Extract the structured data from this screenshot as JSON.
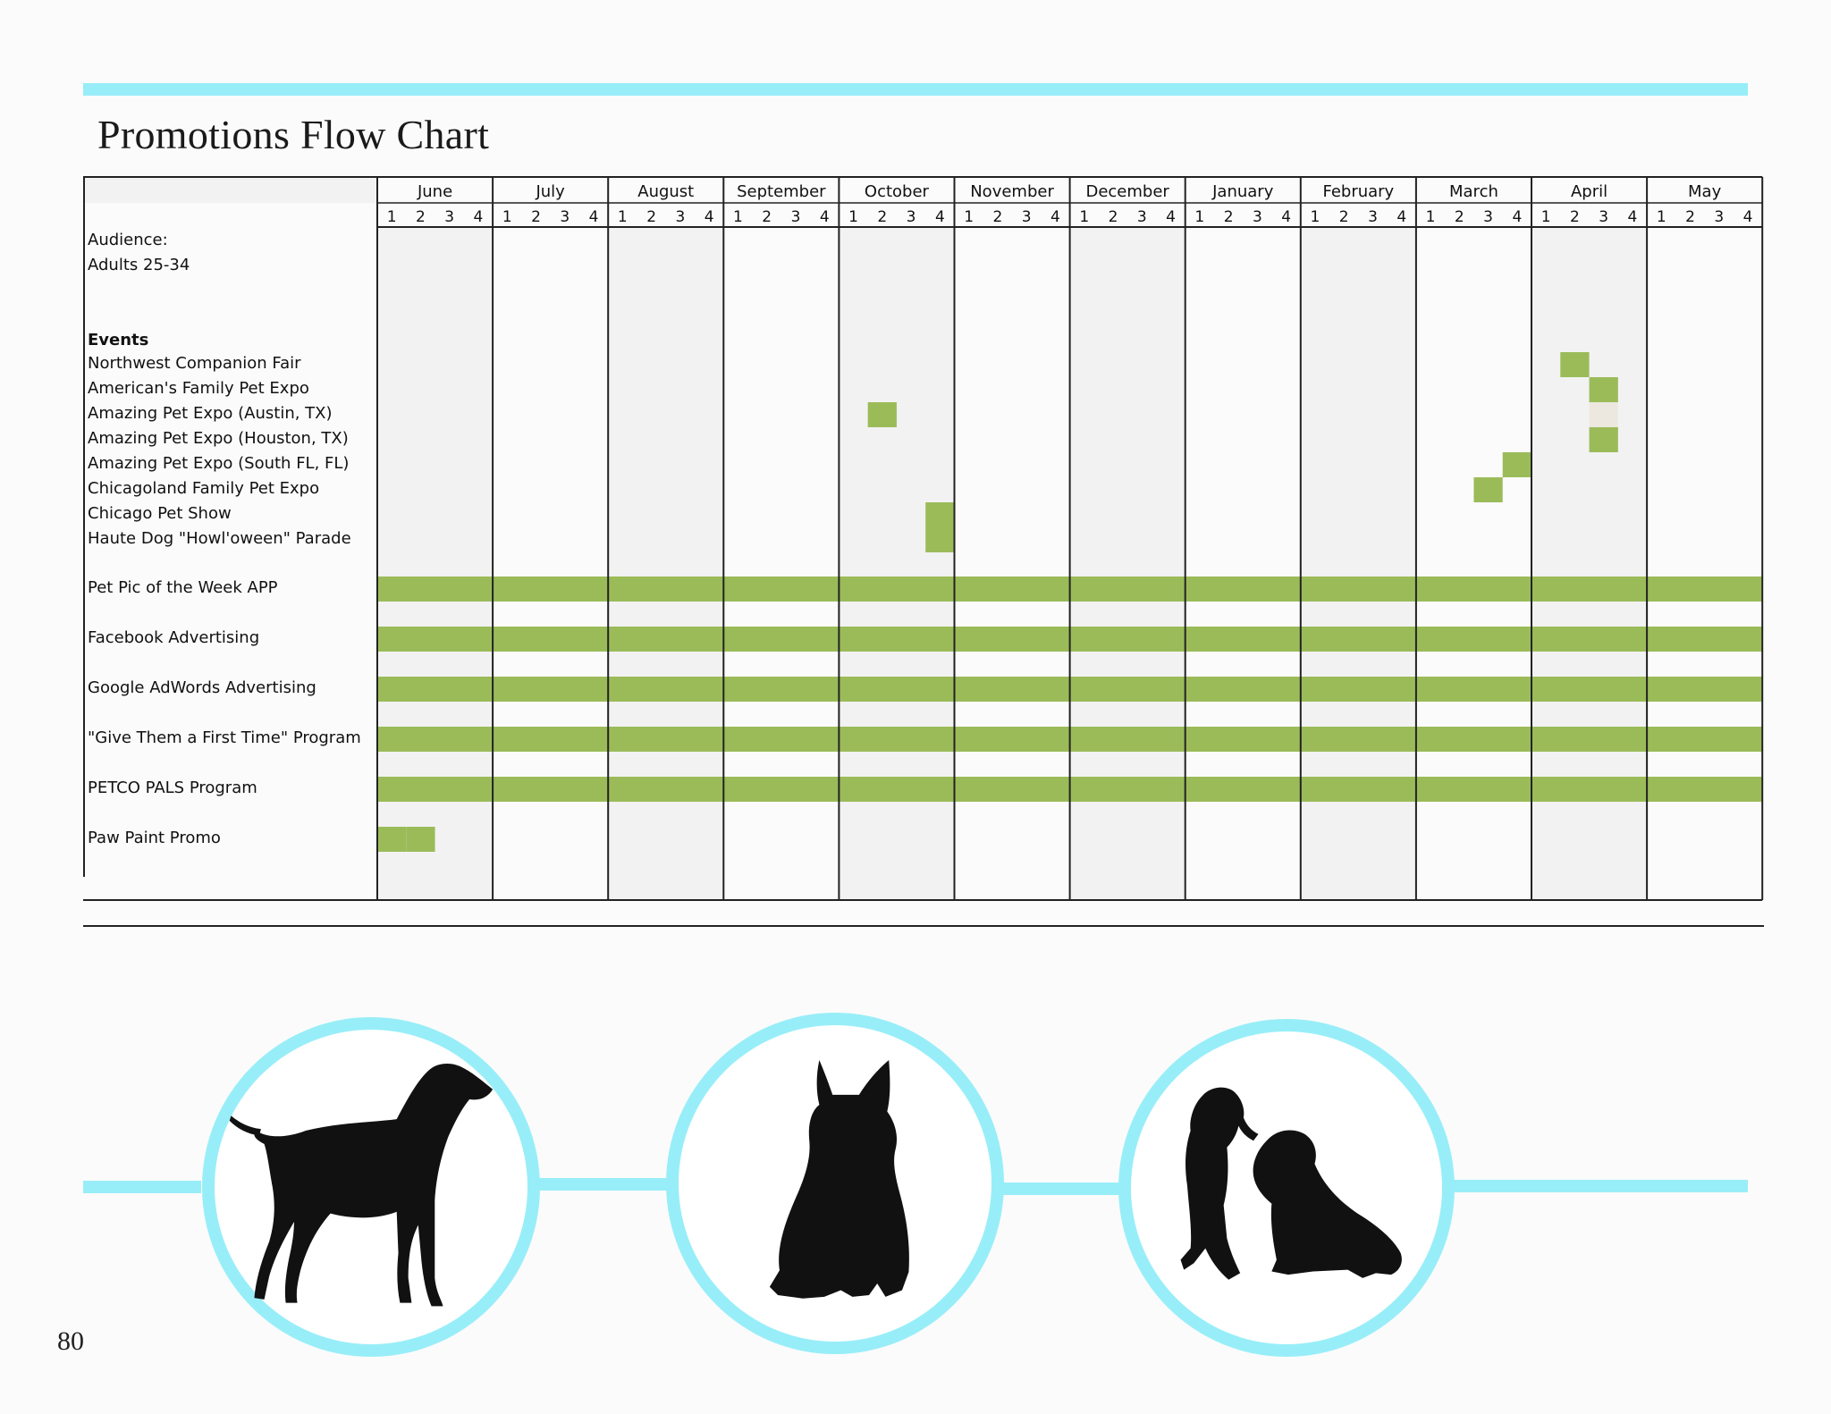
{
  "page": {
    "title": "Promotions Flow Chart",
    "page_number": "80"
  },
  "sidebar": {
    "audience_heading": "Audience:",
    "audience_value": "Adults 25-34",
    "events_heading": "Events"
  },
  "chart_data": {
    "type": "table",
    "title": "Promotions Flow Chart",
    "months": [
      "June",
      "July",
      "August",
      "September",
      "October",
      "November",
      "December",
      "January",
      "February",
      "March",
      "April",
      "May"
    ],
    "weeks": [
      "1",
      "2",
      "3",
      "4"
    ],
    "rows": [
      {
        "label": "Northwest Companion Fair",
        "group": "events",
        "active": [
          [
            10,
            1
          ]
        ]
      },
      {
        "label": "American's Family Pet Expo",
        "group": "events",
        "active": [
          [
            10,
            2
          ]
        ]
      },
      {
        "label": "Amazing Pet Expo (Austin, TX)",
        "group": "events",
        "active": [
          [
            4,
            1
          ]
        ],
        "muted": [
          [
            10,
            2
          ]
        ]
      },
      {
        "label": "Amazing Pet Expo (Houston, TX)",
        "group": "events",
        "active": [
          [
            10,
            2
          ]
        ]
      },
      {
        "label": "Amazing Pet Expo (South FL, FL)",
        "group": "events",
        "active": [
          [
            9,
            3
          ]
        ]
      },
      {
        "label": "Chicagoland Family Pet Expo",
        "group": "events",
        "active": [
          [
            9,
            2
          ]
        ]
      },
      {
        "label": "Chicago Pet Show",
        "group": "events",
        "active": [
          [
            4,
            3
          ]
        ]
      },
      {
        "label": "Haute Dog \"Howl'oween\" Parade",
        "group": "events",
        "active": [
          [
            4,
            3
          ]
        ]
      },
      {
        "label": "Pet Pic of the Week APP",
        "group": "programs",
        "span": "all"
      },
      {
        "label": "Facebook Advertising",
        "group": "programs",
        "span": "all"
      },
      {
        "label": "Google AdWords Advertising",
        "group": "programs",
        "span": "all"
      },
      {
        "label": "\"Give Them a First Time\" Program",
        "group": "programs",
        "span": "all"
      },
      {
        "label": "PETCO PALS Program",
        "group": "programs",
        "span": "all"
      },
      {
        "label": "Paw Paint Promo",
        "group": "programs",
        "active": [
          [
            0,
            0
          ],
          [
            0,
            1
          ]
        ]
      }
    ],
    "colors": {
      "bar": "#9bbb59",
      "muted": "#ece8df",
      "shade": "#f2f2f2",
      "grid": "#222222",
      "accent": "#98eef8"
    }
  },
  "illustrations": [
    {
      "icon": "labrador-dog-silhouette-icon"
    },
    {
      "icon": "french-bulldog-silhouette-icon"
    },
    {
      "icon": "two-dachshunds-silhouette-icon"
    }
  ]
}
